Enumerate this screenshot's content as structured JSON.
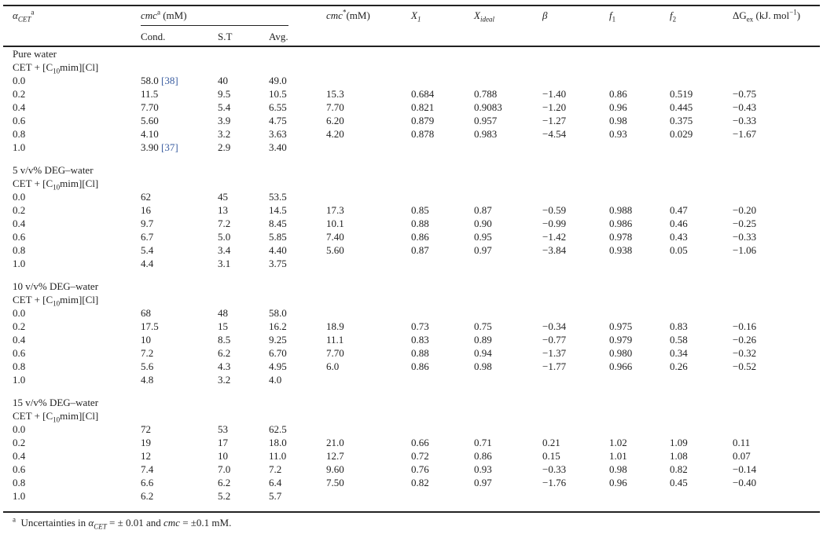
{
  "headers": {
    "alpha": "α",
    "alpha_sub": "CET",
    "alpha_sup": "a",
    "cmc": "cmc",
    "cmc_sup": "a",
    "cmc_unit": " (mM)",
    "cond": "Cond.",
    "st": "S.T",
    "avg": "Avg.",
    "cmc_star": "cmc",
    "cmc_star_sup": "*",
    "cmc_star_unit": "(mM)",
    "x1": "X",
    "x1_sub": "1",
    "xideal": "X",
    "xideal_sub": "ideal",
    "beta": "β",
    "f1": "f",
    "f1_sub": "1",
    "f2": "f",
    "f2_sub": "2",
    "dg": "ΔG",
    "dg_sub": "ex",
    "dg_unit": " (kJ. mol",
    "dg_sup": "−1",
    "dg_close": ")"
  },
  "groups": [
    {
      "label": "Pure water",
      "system": "CET + [C10mim][Cl]",
      "rows": [
        {
          "alpha": "0.0",
          "cond": "58.0",
          "ref": "[38]",
          "st": "40",
          "avg": "49.0",
          "cmc_star": "",
          "x1": "",
          "xideal": "",
          "beta": "",
          "f1": "",
          "f2": "",
          "dg": ""
        },
        {
          "alpha": "0.2",
          "cond": "11.5",
          "ref": "",
          "st": "9.5",
          "avg": "10.5",
          "cmc_star": "15.3",
          "x1": "0.684",
          "xideal": "0.788",
          "beta": "−1.40",
          "f1": "0.86",
          "f2": "0.519",
          "dg": "−0.75"
        },
        {
          "alpha": "0.4",
          "cond": "7.70",
          "ref": "",
          "st": "5.4",
          "avg": "6.55",
          "cmc_star": "7.70",
          "x1": "0.821",
          "xideal": "0.9083",
          "beta": "−1.20",
          "f1": "0.96",
          "f2": "0.445",
          "dg": "−0.43"
        },
        {
          "alpha": "0.6",
          "cond": "5.60",
          "ref": "",
          "st": "3.9",
          "avg": "4.75",
          "cmc_star": "6.20",
          "x1": "0.879",
          "xideal": "0.957",
          "beta": "−1.27",
          "f1": "0.98",
          "f2": "0.375",
          "dg": "−0.33"
        },
        {
          "alpha": "0.8",
          "cond": "4.10",
          "ref": "",
          "st": "3.2",
          "avg": "3.63",
          "cmc_star": "4.20",
          "x1": "0.878",
          "xideal": "0.983",
          "beta": "−4.54",
          "f1": "0.93",
          "f2": "0.029",
          "dg": "−1.67"
        },
        {
          "alpha": "1.0",
          "cond": "3.90",
          "ref": "[37]",
          "st": "2.9",
          "avg": "3.40",
          "cmc_star": "",
          "x1": "",
          "xideal": "",
          "beta": "",
          "f1": "",
          "f2": "",
          "dg": ""
        }
      ]
    },
    {
      "label": "5 v/v% DEG–water",
      "system": "CET + [C10mim][Cl]",
      "rows": [
        {
          "alpha": "0.0",
          "cond": "62",
          "ref": "",
          "st": "45",
          "avg": "53.5",
          "cmc_star": "",
          "x1": "",
          "xideal": "",
          "beta": "",
          "f1": "",
          "f2": "",
          "dg": ""
        },
        {
          "alpha": "0.2",
          "cond": "16",
          "ref": "",
          "st": "13",
          "avg": "14.5",
          "cmc_star": "17.3",
          "x1": "0.85",
          "xideal": "0.87",
          "beta": "−0.59",
          "f1": "0.988",
          "f2": "0.47",
          "dg": "−0.20"
        },
        {
          "alpha": "0.4",
          "cond": "9.7",
          "ref": "",
          "st": "7.2",
          "avg": "8.45",
          "cmc_star": "10.1",
          "x1": "0.88",
          "xideal": "0.90",
          "beta": "−0.99",
          "f1": "0.986",
          "f2": "0.46",
          "dg": "−0.25"
        },
        {
          "alpha": "0.6",
          "cond": "6.7",
          "ref": "",
          "st": "5.0",
          "avg": "5.85",
          "cmc_star": "7.40",
          "x1": "0.86",
          "xideal": "0.95",
          "beta": "−1.42",
          "f1": "0.978",
          "f2": "0.43",
          "dg": "−0.33"
        },
        {
          "alpha": "0.8",
          "cond": "5.4",
          "ref": "",
          "st": "3.4",
          "avg": "4.40",
          "cmc_star": "5.60",
          "x1": "0.87",
          "xideal": "0.97",
          "beta": "−3.84",
          "f1": "0.938",
          "f2": "0.05",
          "dg": "−1.06"
        },
        {
          "alpha": "1.0",
          "cond": "4.4",
          "ref": "",
          "st": "3.1",
          "avg": "3.75",
          "cmc_star": "",
          "x1": "",
          "xideal": "",
          "beta": "",
          "f1": "",
          "f2": "",
          "dg": ""
        }
      ]
    },
    {
      "label": "10 v/v% DEG–water",
      "system": "CET + [C10mim][Cl]",
      "rows": [
        {
          "alpha": "0.0",
          "cond": "68",
          "ref": "",
          "st": "48",
          "avg": "58.0",
          "cmc_star": "",
          "x1": "",
          "xideal": "",
          "beta": "",
          "f1": "",
          "f2": "",
          "dg": ""
        },
        {
          "alpha": "0.2",
          "cond": "17.5",
          "ref": "",
          "st": "15",
          "avg": "16.2",
          "cmc_star": "18.9",
          "x1": "0.73",
          "xideal": "0.75",
          "beta": "−0.34",
          "f1": "0.975",
          "f2": "0.83",
          "dg": "−0.16"
        },
        {
          "alpha": "0.4",
          "cond": "10",
          "ref": "",
          "st": "8.5",
          "avg": "9.25",
          "cmc_star": "11.1",
          "x1": "0.83",
          "xideal": "0.89",
          "beta": "−0.77",
          "f1": "0.979",
          "f2": "0.58",
          "dg": "−0.26"
        },
        {
          "alpha": "0.6",
          "cond": "7.2",
          "ref": "",
          "st": "6.2",
          "avg": "6.70",
          "cmc_star": "7.70",
          "x1": "0.88",
          "xideal": "0.94",
          "beta": "−1.37",
          "f1": "0.980",
          "f2": "0.34",
          "dg": "−0.32"
        },
        {
          "alpha": "0.8",
          "cond": "5.6",
          "ref": "",
          "st": "4.3",
          "avg": "4.95",
          "cmc_star": "6.0",
          "x1": "0.86",
          "xideal": "0.98",
          "beta": "−1.77",
          "f1": "0.966",
          "f2": "0.26",
          "dg": "−0.52"
        },
        {
          "alpha": "1.0",
          "cond": "4.8",
          "ref": "",
          "st": "3.2",
          "avg": "4.0",
          "cmc_star": "",
          "x1": "",
          "xideal": "",
          "beta": "",
          "f1": "",
          "f2": "",
          "dg": ""
        }
      ]
    },
    {
      "label": "15 v/v% DEG–water",
      "system": "CET + [C10mim][Cl]",
      "rows": [
        {
          "alpha": "0.0",
          "cond": "72",
          "ref": "",
          "st": "53",
          "avg": "62.5",
          "cmc_star": "",
          "x1": "",
          "xideal": "",
          "beta": "",
          "f1": "",
          "f2": "",
          "dg": ""
        },
        {
          "alpha": "0.2",
          "cond": "19",
          "ref": "",
          "st": "17",
          "avg": "18.0",
          "cmc_star": "21.0",
          "x1": "0.66",
          "xideal": "0.71",
          "beta": "0.21",
          "f1": "1.02",
          "f2": "1.09",
          "dg": "0.11"
        },
        {
          "alpha": "0.4",
          "cond": "12",
          "ref": "",
          "st": "10",
          "avg": "11.0",
          "cmc_star": "12.7",
          "x1": "0.72",
          "xideal": "0.86",
          "beta": "0.15",
          "f1": "1.01",
          "f2": "1.08",
          "dg": "0.07"
        },
        {
          "alpha": "0.6",
          "cond": "7.4",
          "ref": "",
          "st": "7.0",
          "avg": "7.2",
          "cmc_star": "9.60",
          "x1": "0.76",
          "xideal": "0.93",
          "beta": "−0.33",
          "f1": "0.98",
          "f2": "0.82",
          "dg": "−0.14"
        },
        {
          "alpha": "0.8",
          "cond": "6.6",
          "ref": "",
          "st": "6.2",
          "avg": "6.4",
          "cmc_star": "7.50",
          "x1": "0.82",
          "xideal": "0.97",
          "beta": "−1.76",
          "f1": "0.96",
          "f2": "0.45",
          "dg": "−0.40"
        },
        {
          "alpha": "1.0",
          "cond": "6.2",
          "ref": "",
          "st": "5.2",
          "avg": "5.7",
          "cmc_star": "",
          "x1": "",
          "xideal": "",
          "beta": "",
          "f1": "",
          "f2": "",
          "dg": ""
        }
      ]
    }
  ],
  "footnote": {
    "mark": "a",
    "text1": "Uncertainties in ",
    "alpha": "α",
    "alpha_sub": "CET",
    "text2": " = ± 0.01 and ",
    "cmc": "cmc",
    "text3": " = ±0.1 mM."
  }
}
